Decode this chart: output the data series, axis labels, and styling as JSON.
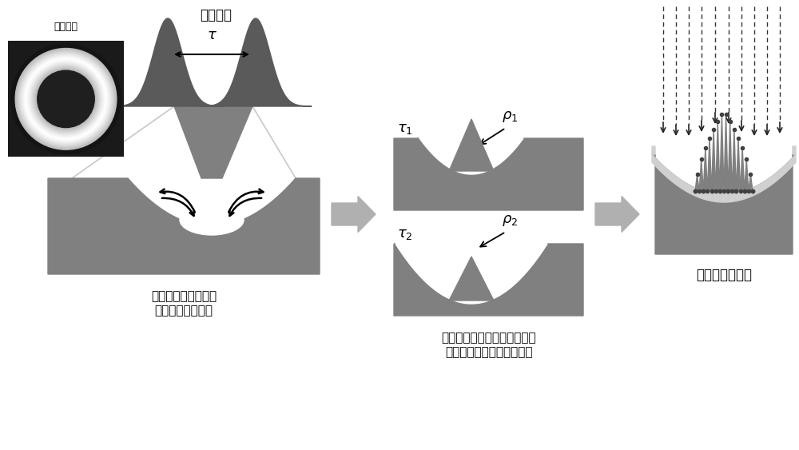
{
  "bg_color": "#ffffff",
  "gray_color": "#808080",
  "dark_gray": "#5a5a5a",
  "light_gray": "#b0b0b0",
  "silver": "#d0d0d0",
  "labels": {
    "spatial": "空间分布",
    "temporal": "时域分布",
    "caption1a": "双脉冲涡旋光束加工",
    "caption1b": "引起熴融材料移动",
    "caption2a": "变脉冲延时调节微凹面深径比",
    "caption2b": "（即调节凹面镜数値孔径）",
    "caption3": "贵金属薄膜沉积"
  }
}
